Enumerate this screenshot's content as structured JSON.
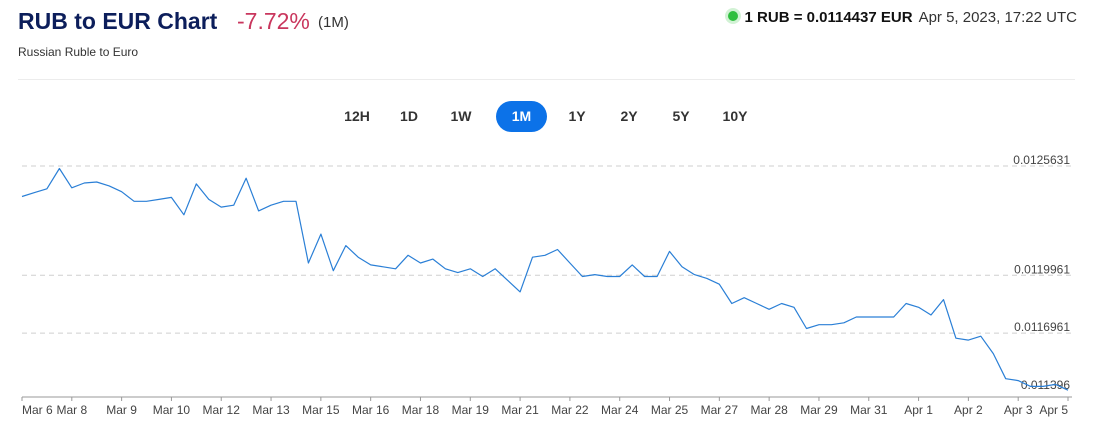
{
  "header": {
    "title": "RUB to EUR Chart",
    "change": "-7.72%",
    "period": "(1M)",
    "rate": "1 RUB = 0.0114437 EUR",
    "timestamp": "Apr 5, 2023, 17:22 UTC",
    "subtitle": "Russian Ruble to Euro"
  },
  "colors": {
    "title": "#0c1e5b",
    "change": "#c9365d",
    "line": "#2a7fd6",
    "active_tab": "#0c72e8",
    "live": "#2fbf3f"
  },
  "tabs": [
    {
      "label": "12H",
      "active": false
    },
    {
      "label": "1D",
      "active": false
    },
    {
      "label": "1W",
      "active": false
    },
    {
      "label": "1M",
      "active": true
    },
    {
      "label": "1Y",
      "active": false
    },
    {
      "label": "2Y",
      "active": false
    },
    {
      "label": "5Y",
      "active": false
    },
    {
      "label": "10Y",
      "active": false
    }
  ],
  "chart_data": {
    "type": "line",
    "title": "",
    "xlabel": "",
    "ylabel": "",
    "grid": "horizontal dashed",
    "y_ticks": [
      0.0125631,
      0.0119961,
      0.0116961,
      0.011396
    ],
    "y_tick_labels": [
      "0.0125631",
      "0.0119961",
      "0.0116961",
      "0.011396"
    ],
    "ylim": [
      0.0113,
      0.0126
    ],
    "x_tick_labels": [
      "Mar 6",
      "Mar 8",
      "Mar 9",
      "Mar 10",
      "Mar 12",
      "Mar 13",
      "Mar 15",
      "Mar 16",
      "Mar 18",
      "Mar 19",
      "Mar 21",
      "Mar 22",
      "Mar 24",
      "Mar 25",
      "Mar 27",
      "Mar 28",
      "Mar 29",
      "Mar 31",
      "Apr 1",
      "Apr 2",
      "Apr 3",
      "Apr 5"
    ],
    "series": [
      {
        "x": [
          0,
          0.25,
          0.5,
          0.75,
          1.0,
          1.25,
          1.5,
          1.75,
          2.0,
          2.25,
          2.5,
          2.75,
          3.0,
          3.25,
          3.5,
          3.75,
          4.0,
          4.25,
          4.5,
          4.75,
          5.0,
          5.25,
          5.5,
          5.75,
          6.0,
          6.25,
          6.5,
          6.75,
          7.0,
          7.25,
          7.5,
          7.75,
          8.0,
          8.25,
          8.5,
          8.75,
          9.0,
          9.25,
          9.5,
          9.75,
          10.0,
          10.25,
          10.5,
          10.75,
          11.0,
          11.25,
          11.5,
          11.75,
          12.0,
          12.25,
          12.5,
          12.75,
          13.0,
          13.25,
          13.5,
          13.75,
          14.0,
          14.25,
          14.5,
          14.75,
          15.0,
          15.25,
          15.5,
          15.75,
          16.0,
          16.25,
          16.5,
          16.75,
          17.0,
          17.25,
          17.5,
          17.75,
          18.0,
          18.25,
          18.5,
          18.75,
          19.0,
          19.25,
          19.5,
          19.75,
          20.0,
          20.25,
          20.5,
          20.75,
          21.0
        ],
        "y": [
          0.012405,
          0.012425,
          0.012445,
          0.01255,
          0.01245,
          0.012475,
          0.01248,
          0.01246,
          0.01243,
          0.01238,
          0.01238,
          0.01239,
          0.0124,
          0.01231,
          0.01247,
          0.01239,
          0.01235,
          0.01236,
          0.0125,
          0.01233,
          0.01236,
          0.01238,
          0.01238,
          0.01206,
          0.01221,
          0.01202,
          0.01215,
          0.01209,
          0.01205,
          0.01204,
          0.01203,
          0.0121,
          0.01206,
          0.01208,
          0.01203,
          0.01201,
          0.01203,
          0.01199,
          0.01203,
          0.01197,
          0.01191,
          0.01209,
          0.0121,
          0.01213,
          0.01206,
          0.01199,
          0.012,
          0.01199,
          0.01199,
          0.01205,
          0.01199,
          0.01199,
          0.01212,
          0.01204,
          0.012,
          0.01198,
          0.01195,
          0.01185,
          0.01188,
          0.01185,
          0.01182,
          0.01185,
          0.01183,
          0.01172,
          0.01174,
          0.01174,
          0.01175,
          0.01178,
          0.01178,
          0.01178,
          0.01178,
          0.01185,
          0.01183,
          0.01179,
          0.01187,
          0.01167,
          0.01166,
          0.01168,
          0.01159,
          0.01146,
          0.01145,
          0.01142,
          0.01142,
          0.01143,
          0.0114
        ]
      }
    ]
  }
}
